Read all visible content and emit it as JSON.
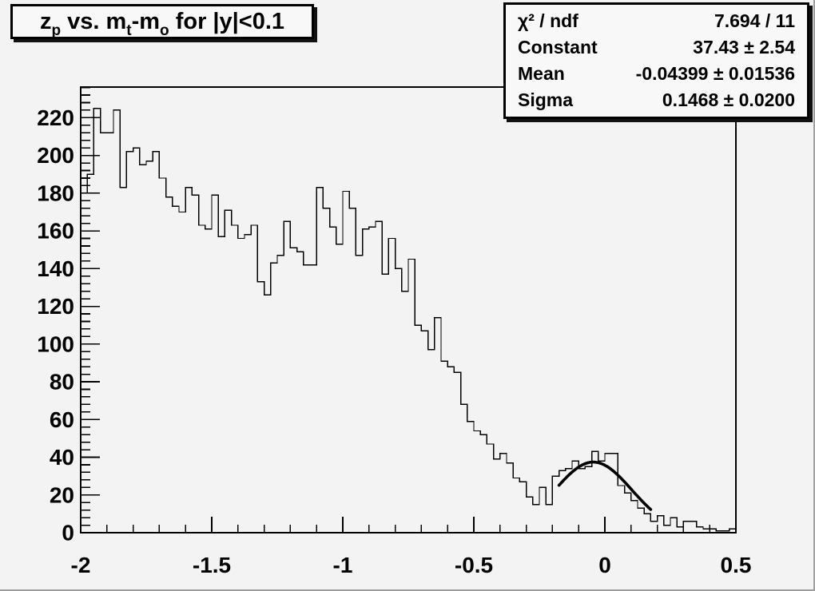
{
  "canvas": {
    "background": "#f2f3f2",
    "foreground": "#000000",
    "pave_fill": "#f8f8f8",
    "hist_line_color": "#000000",
    "fit_line_color": "#000000"
  },
  "title_box": {
    "p0": "z",
    "p1": "p",
    "p2": " vs. m",
    "p3": "t",
    "p4": "-m",
    "p5": "o",
    "p6": " for |y|<0.1"
  },
  "stats_box": {
    "rows": [
      {
        "label": "χ² / ndf",
        "value": "7.694 / 11"
      },
      {
        "label": "Constant",
        "value": "37.43 ± 2.54"
      },
      {
        "label": "Mean",
        "value": "-0.04399 ± 0.01536"
      },
      {
        "label": "Sigma",
        "value": "0.1468 ± 0.0200"
      }
    ]
  },
  "chart_data": {
    "type": "bar",
    "title": "z_p vs. m_t-m_o for |y|<0.1",
    "xlabel": "",
    "ylabel": "",
    "x_min": -2,
    "x_max": 0.5,
    "bin_width": 0.025,
    "n_bins": 100,
    "ylim": [
      0,
      236.25
    ],
    "grid": false,
    "x_ticks_major": [
      -2,
      -1.5,
      -1,
      -0.5,
      0,
      0.5
    ],
    "x_tick_labels": [
      "-2",
      "-1.5",
      "-1",
      "-0.5",
      "0",
      "0.5"
    ],
    "x_minor_step": 0.1,
    "y_ticks_major": [
      0,
      20,
      40,
      60,
      80,
      100,
      120,
      140,
      160,
      180,
      200,
      220
    ],
    "y_tick_labels": [
      "0",
      "20",
      "40",
      "60",
      "80",
      "100",
      "120",
      "140",
      "160",
      "180",
      "200",
      "220"
    ],
    "y_minor_step": 4,
    "values": [
      180,
      190,
      225,
      212,
      212,
      224,
      183,
      202,
      204,
      195,
      197,
      202,
      188,
      178,
      173,
      170,
      183,
      179,
      163,
      161,
      179,
      157,
      171,
      163,
      156,
      158,
      163,
      133,
      126,
      143,
      147,
      165,
      151,
      149,
      142,
      142,
      183,
      172,
      162,
      153,
      181,
      172,
      147,
      161,
      162,
      165,
      137,
      156,
      140,
      128,
      145,
      110,
      107,
      97,
      114,
      91,
      88,
      85,
      68,
      59,
      54,
      52,
      47,
      39,
      42,
      37,
      29,
      27,
      19,
      15,
      24,
      15,
      30,
      33,
      34,
      38,
      34,
      35,
      43,
      38,
      42,
      42,
      25,
      21,
      17,
      13,
      10,
      6,
      9,
      4,
      8,
      3,
      6,
      6,
      3,
      2,
      2,
      1,
      1,
      2
    ],
    "fit": {
      "type": "gaussian",
      "constant": 37.43,
      "constant_err": 2.54,
      "mean": -0.04399,
      "mean_err": 0.01536,
      "sigma": 0.1468,
      "sigma_err": 0.02,
      "chi2": 7.694,
      "ndf": 11,
      "draw_range": [
        -0.175,
        0.175
      ]
    }
  }
}
